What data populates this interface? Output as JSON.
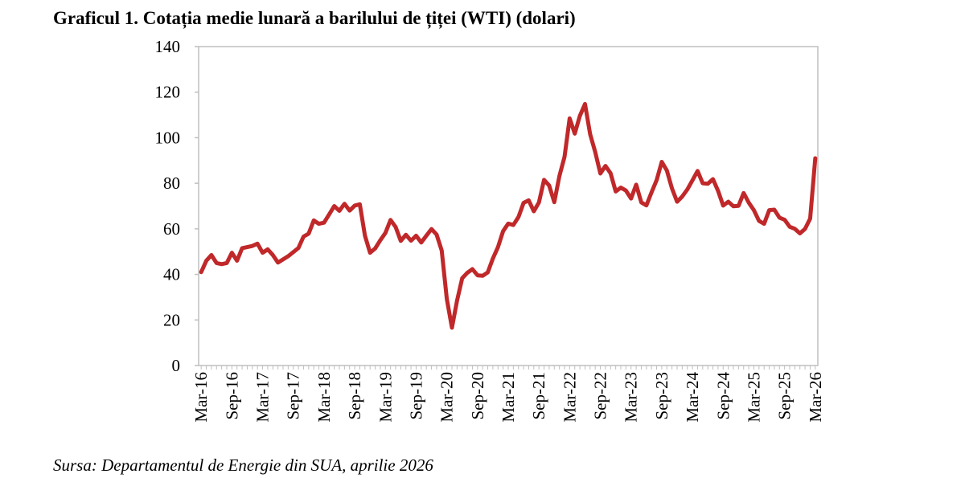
{
  "chart_data": {
    "type": "line",
    "title": "Graficul 1. Cotația medie lunară a barilului de țiței (WTI) (dolari)",
    "source": "Sursa: Departamentul de Energie din SUA, aprilie 2026",
    "categories": [
      "Mar-16",
      null,
      null,
      null,
      null,
      null,
      "Sep-16",
      null,
      null,
      null,
      null,
      null,
      "Mar-17",
      null,
      null,
      null,
      null,
      null,
      "Sep-17",
      null,
      null,
      null,
      null,
      null,
      "Mar-18",
      null,
      null,
      null,
      null,
      null,
      "Sep-18",
      null,
      null,
      null,
      null,
      null,
      "Mar-19",
      null,
      null,
      null,
      null,
      null,
      "Sep-19",
      null,
      null,
      null,
      null,
      null,
      "Mar-20",
      null,
      null,
      null,
      null,
      null,
      "Sep-20",
      null,
      null,
      null,
      null,
      null,
      "Mar-21",
      null,
      null,
      null,
      null,
      null,
      "Sep-21",
      null,
      null,
      null,
      null,
      null,
      "Mar-22",
      null,
      null,
      null,
      null,
      null,
      "Sep-22",
      null,
      null,
      null,
      null,
      null,
      "Mar-23",
      null,
      null,
      null,
      null,
      null,
      "Sep-23",
      null,
      null,
      null,
      null,
      null,
      "Mar-24",
      null,
      null,
      null,
      null,
      null,
      "Sep-24",
      null,
      null,
      null,
      null,
      null,
      "Mar-25",
      null,
      null,
      null,
      null,
      null,
      "Sep-25",
      null,
      null,
      null,
      null,
      null,
      "Mar-26"
    ],
    "values": [
      41,
      46,
      48.5,
      45,
      44.5,
      45,
      49.5,
      46,
      51.5,
      52,
      52.5,
      53.5,
      49.5,
      51,
      48.5,
      45.2,
      46.6,
      48,
      49.8,
      51.6,
      56.6,
      57.9,
      63.7,
      62.2,
      62.7,
      66.3,
      70,
      67.9,
      71,
      68,
      70.2,
      70.8,
      57,
      49.5,
      51.4,
      55,
      58.2,
      63.9,
      60.8,
      54.7,
      57.4,
      54.8,
      57,
      54,
      57,
      59.9,
      57.5,
      50.5,
      29.2,
      16.6,
      28.5,
      38.3,
      40.7,
      42.3,
      39.6,
      39.4,
      40.9,
      47,
      52,
      59,
      62.3,
      61.7,
      65.2,
      71.4,
      72.5,
      67.7,
      71.6,
      81.5,
      79,
      71.7,
      83.2,
      91.6,
      108.5,
      101.8,
      109.6,
      114.8,
      101.6,
      93.7,
      84.3,
      87.6,
      84.4,
      76.4,
      78.1,
      76.8,
      73.3,
      79.4,
      71.6,
      70.3,
      76,
      81.4,
      89.4,
      85.6,
      77.7,
      71.9,
      74.2,
      77.3,
      81.3,
      85.4,
      80,
      79.8,
      81.8,
      76.7,
      70.2,
      71.9,
      69.9,
      70.1,
      75.7,
      71.5,
      68.2,
      63.5,
      62.2,
      68.2,
      68.4,
      64.9,
      64,
      60.9,
      60,
      58,
      60,
      64.5,
      91
    ],
    "color": "#c0282a",
    "ylim": [
      0,
      140
    ],
    "yticks": [
      0,
      20,
      40,
      60,
      80,
      100,
      120,
      140
    ]
  }
}
